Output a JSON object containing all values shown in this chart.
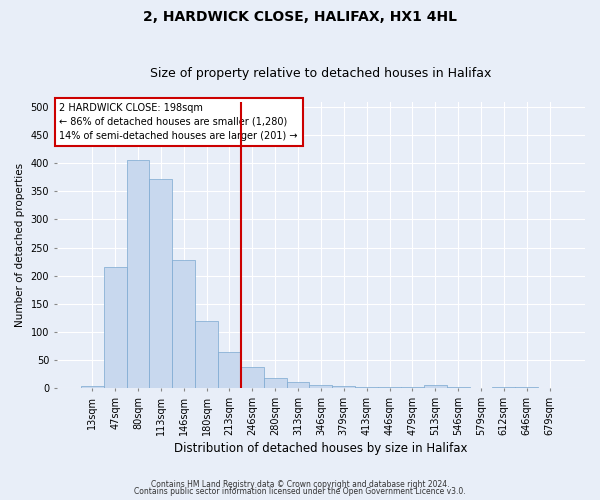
{
  "title1": "2, HARDWICK CLOSE, HALIFAX, HX1 4HL",
  "title2": "Size of property relative to detached houses in Halifax",
  "xlabel": "Distribution of detached houses by size in Halifax",
  "ylabel": "Number of detached properties",
  "categories": [
    "13sqm",
    "47sqm",
    "80sqm",
    "113sqm",
    "146sqm",
    "180sqm",
    "213sqm",
    "246sqm",
    "280sqm",
    "313sqm",
    "346sqm",
    "379sqm",
    "413sqm",
    "446sqm",
    "479sqm",
    "513sqm",
    "546sqm",
    "579sqm",
    "612sqm",
    "646sqm",
    "679sqm"
  ],
  "values": [
    3,
    215,
    405,
    372,
    228,
    120,
    64,
    38,
    17,
    11,
    6,
    3,
    1,
    1,
    1,
    6,
    1,
    0,
    2,
    1,
    0
  ],
  "bar_color": "#c8d8ee",
  "bar_edge_color": "#7aa8d0",
  "vline_color": "#cc0000",
  "vline_x_index": 6.5,
  "annotation_text": "2 HARDWICK CLOSE: 198sqm\n← 86% of detached houses are smaller (1,280)\n14% of semi-detached houses are larger (201) →",
  "annotation_box_color": "#ffffff",
  "annotation_box_edge_color": "#cc0000",
  "ylim": [
    0,
    510
  ],
  "yticks": [
    0,
    50,
    100,
    150,
    200,
    250,
    300,
    350,
    400,
    450,
    500
  ],
  "footer1": "Contains HM Land Registry data © Crown copyright and database right 2024.",
  "footer2": "Contains public sector information licensed under the Open Government Licence v3.0.",
  "background_color": "#e8eef8",
  "plot_background": "#e8eef8",
  "grid_color": "#ffffff",
  "title1_fontsize": 10,
  "title2_fontsize": 9,
  "tick_fontsize": 7,
  "ylabel_fontsize": 7.5,
  "xlabel_fontsize": 8.5
}
